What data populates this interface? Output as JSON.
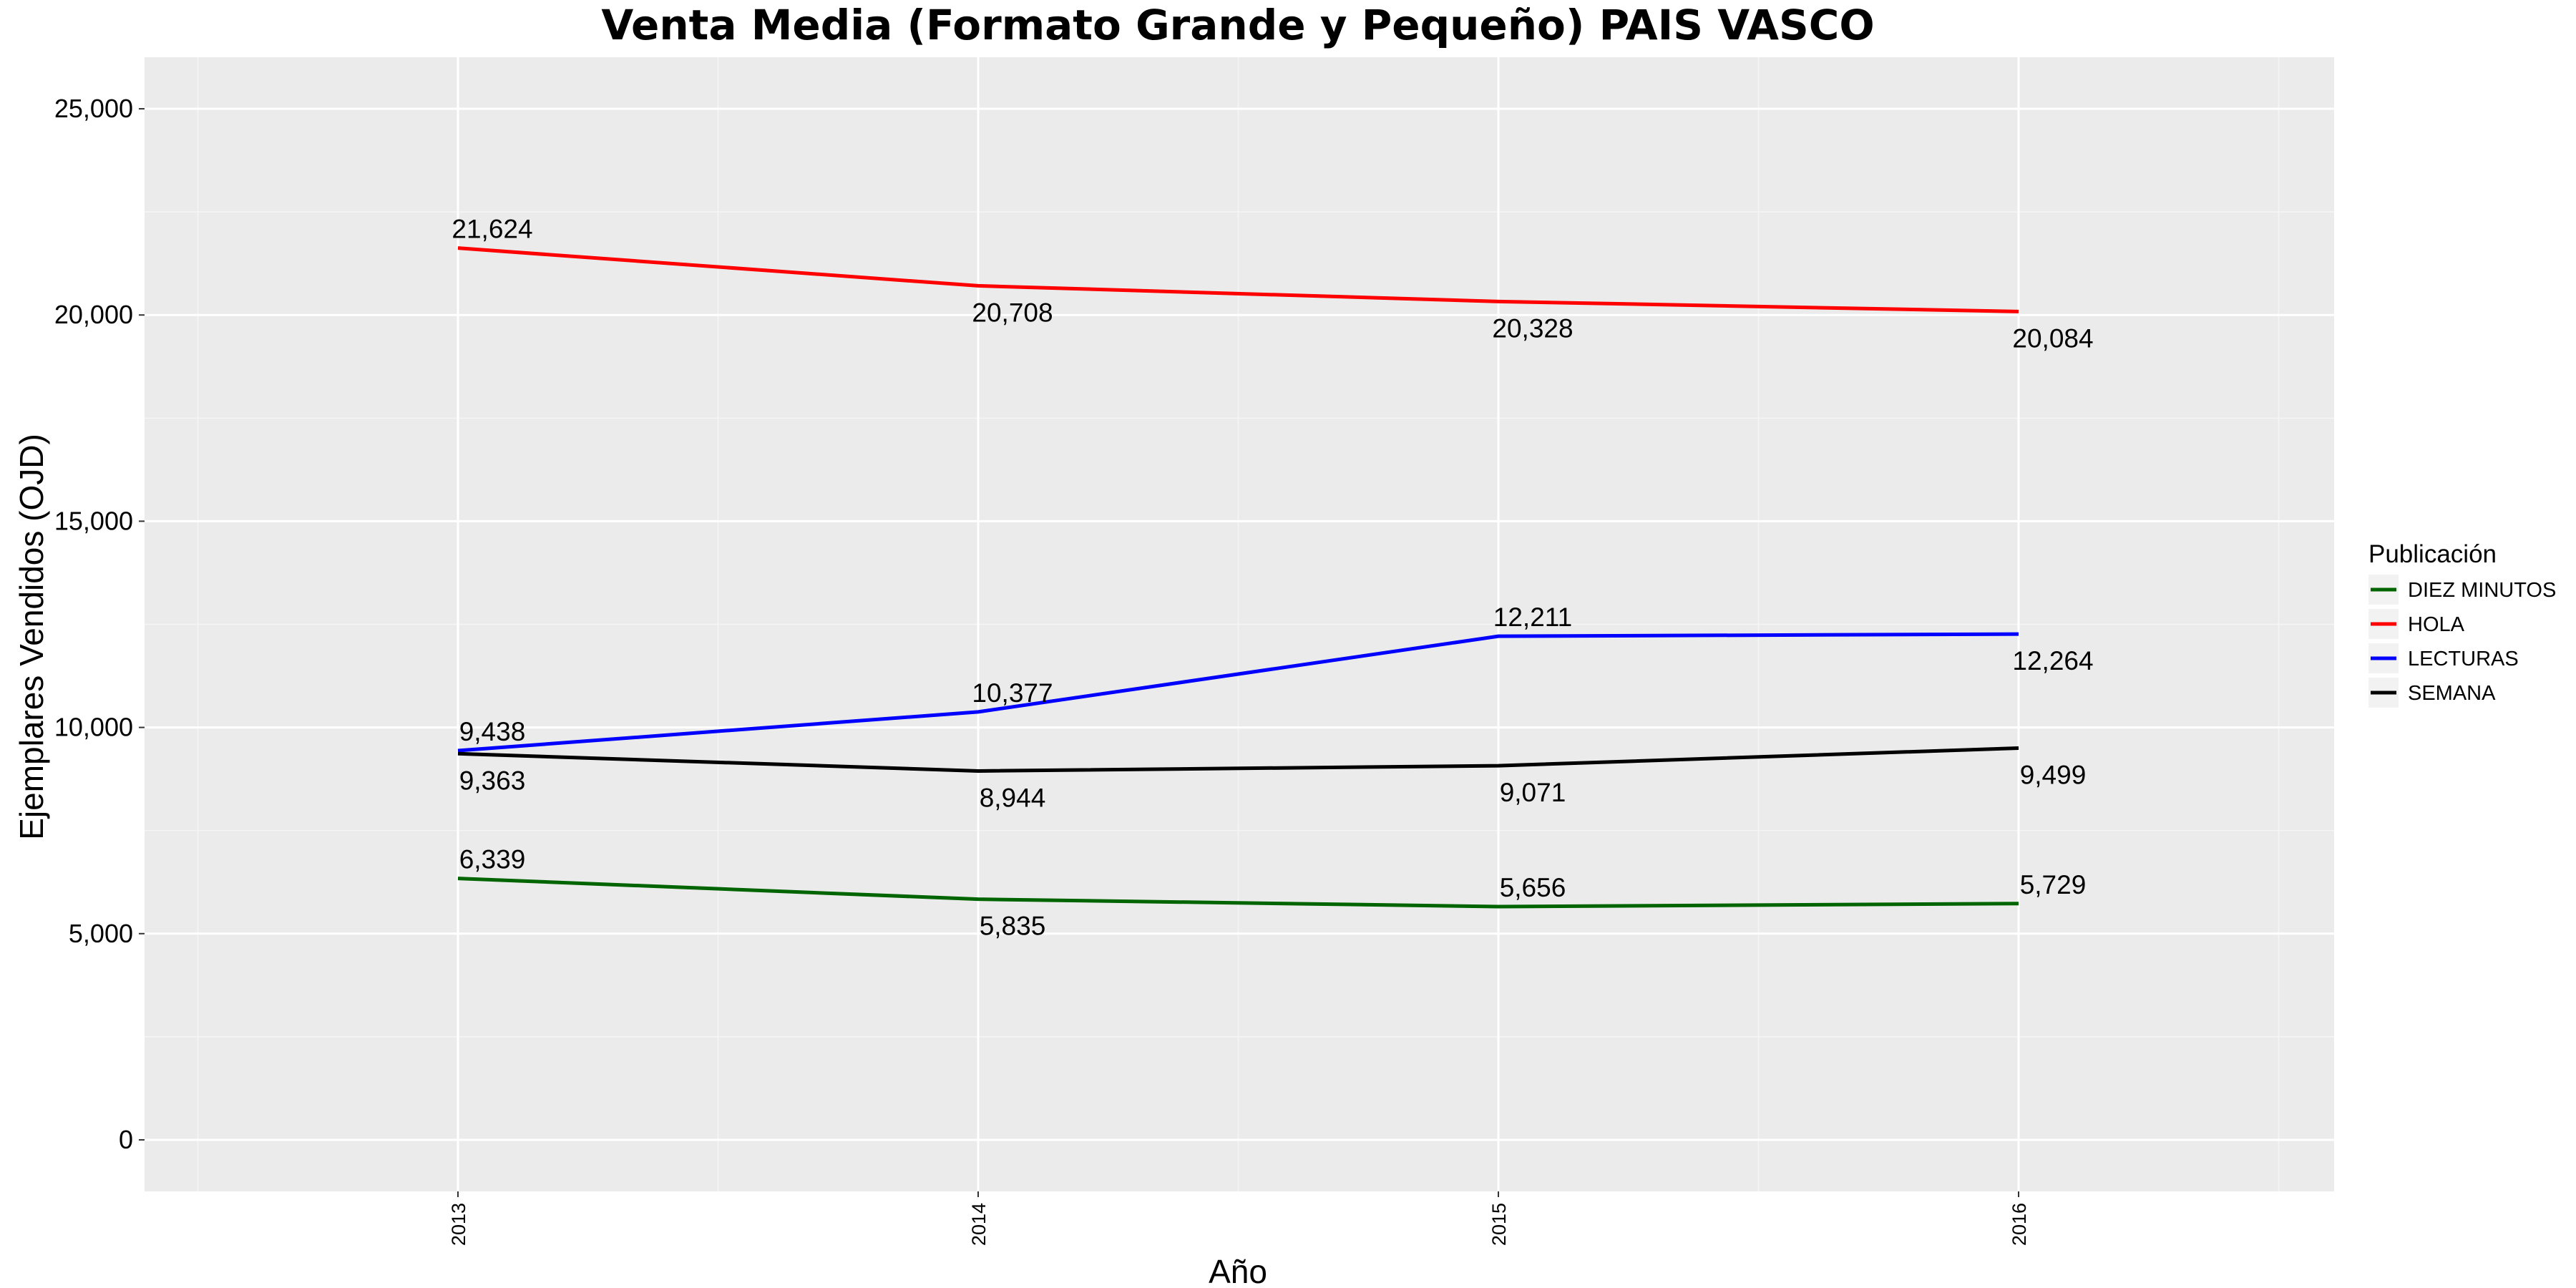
{
  "chart_data": {
    "type": "line",
    "title": "Venta Media (Formato Grande y Pequeño)  PAIS VASCO",
    "xlabel": "Año",
    "ylabel": "Ejemplares Vendidos (OJD)",
    "x": [
      "2013",
      "2014",
      "2015",
      "2016"
    ],
    "ylim": [
      -1250,
      26250
    ],
    "yticks": [
      0,
      5000,
      10000,
      15000,
      20000,
      25000
    ],
    "ytick_labels": [
      "0",
      "5,000",
      "10,000",
      "15,000",
      "20,000",
      "25,000"
    ],
    "grid": true,
    "legend": {
      "title": "Publicación",
      "position": "right"
    },
    "series": [
      {
        "name": "DIEZ MINUTOS",
        "color": "#006400",
        "values": [
          6339,
          5835,
          5656,
          5729
        ],
        "labels": [
          "6,339",
          "5,835",
          "5,656",
          "5,729"
        ],
        "label_pos": [
          "above",
          "below",
          "above",
          "above"
        ]
      },
      {
        "name": "HOLA",
        "color": "#ff0000",
        "values": [
          21624,
          20708,
          20328,
          20084
        ],
        "labels": [
          "21,624",
          "20,708",
          "20,328",
          "20,084"
        ],
        "label_pos": [
          "above",
          "below",
          "below",
          "below"
        ]
      },
      {
        "name": "LECTURAS",
        "color": "#0000ff",
        "values": [
          9438,
          10377,
          12211,
          12264
        ],
        "labels": [
          "9,438",
          "10,377",
          "12,211",
          "12,264"
        ],
        "label_pos": [
          "above",
          "above",
          "above",
          "below"
        ]
      },
      {
        "name": "SEMANA",
        "color": "#000000",
        "values": [
          9363,
          8944,
          9071,
          9499
        ],
        "labels": [
          "9,363",
          "8,944",
          "9,071",
          "9,499"
        ],
        "label_pos": [
          "below",
          "below",
          "below",
          "below"
        ]
      }
    ]
  }
}
